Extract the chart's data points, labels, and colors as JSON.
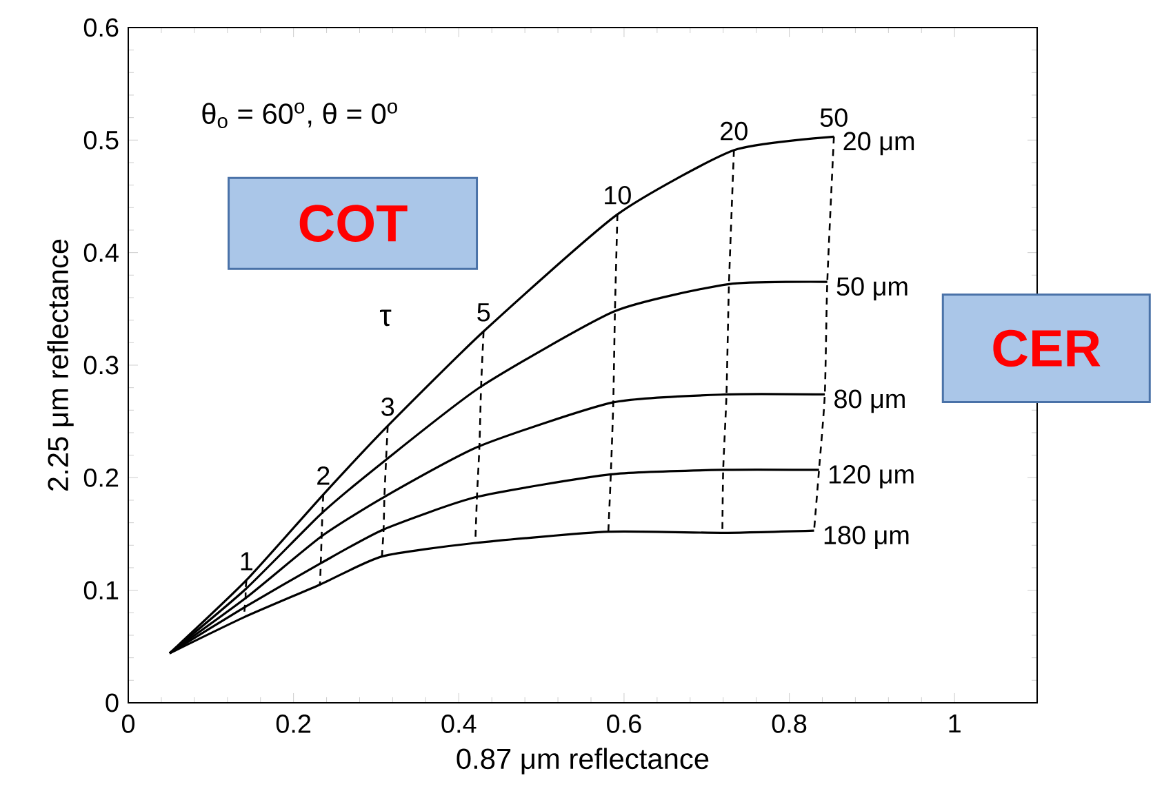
{
  "chart_data": {
    "type": "line",
    "xlabel": "0.87 μm reflectance",
    "ylabel": "2.25 μm reflectance",
    "xlim": [
      0,
      1.1
    ],
    "ylim": [
      0,
      0.6
    ],
    "xticks": [
      0,
      0.2,
      0.4,
      0.6,
      0.8,
      1
    ],
    "yticks": [
      0,
      0.1,
      0.2,
      0.3,
      0.4,
      0.5,
      0.6
    ],
    "grid": false,
    "series": [
      {
        "name": "20 μm",
        "color": "#000000",
        "line_style": "solid",
        "x": [
          0.05,
          0.143,
          0.236,
          0.314,
          0.43,
          0.592,
          0.733,
          0.854
        ],
        "values": [
          0.044,
          0.109,
          0.185,
          0.246,
          0.33,
          0.434,
          0.491,
          0.503
        ]
      },
      {
        "name": "50 μm",
        "color": "#000000",
        "line_style": "solid",
        "x": [
          0.05,
          0.142,
          0.235,
          0.312,
          0.427,
          0.589,
          0.727,
          0.846
        ],
        "values": [
          0.044,
          0.101,
          0.169,
          0.216,
          0.281,
          0.348,
          0.372,
          0.374
        ]
      },
      {
        "name": "80 μm",
        "color": "#000000",
        "line_style": "solid",
        "x": [
          0.05,
          0.142,
          0.234,
          0.31,
          0.425,
          0.587,
          0.724,
          0.843
        ],
        "values": [
          0.044,
          0.093,
          0.148,
          0.183,
          0.228,
          0.267,
          0.274,
          0.274
        ]
      },
      {
        "name": "120 μm",
        "color": "#000000",
        "line_style": "solid",
        "x": [
          0.05,
          0.141,
          0.233,
          0.309,
          0.422,
          0.584,
          0.72,
          0.836
        ],
        "values": [
          0.044,
          0.085,
          0.124,
          0.154,
          0.183,
          0.203,
          0.207,
          0.207
        ]
      },
      {
        "name": "180 μm",
        "color": "#000000",
        "line_style": "solid",
        "x": [
          0.05,
          0.14,
          0.232,
          0.307,
          0.42,
          0.581,
          0.719,
          0.83
        ],
        "values": [
          0.044,
          0.076,
          0.105,
          0.13,
          0.142,
          0.152,
          0.151,
          0.153
        ]
      },
      {
        "name": "1",
        "color": "#000000",
        "line_style": "dashed",
        "x": [
          0.143,
          0.142,
          0.142,
          0.141,
          0.14
        ],
        "values": [
          0.109,
          0.101,
          0.093,
          0.085,
          0.076
        ]
      },
      {
        "name": "2",
        "color": "#000000",
        "line_style": "dashed",
        "x": [
          0.236,
          0.235,
          0.234,
          0.233,
          0.232
        ],
        "values": [
          0.185,
          0.169,
          0.148,
          0.124,
          0.105
        ]
      },
      {
        "name": "3",
        "color": "#000000",
        "line_style": "dashed",
        "x": [
          0.314,
          0.312,
          0.31,
          0.309,
          0.307
        ],
        "values": [
          0.246,
          0.216,
          0.183,
          0.154,
          0.13
        ]
      },
      {
        "name": "5",
        "color": "#000000",
        "line_style": "dashed",
        "x": [
          0.43,
          0.427,
          0.425,
          0.422,
          0.42
        ],
        "values": [
          0.33,
          0.281,
          0.228,
          0.183,
          0.142
        ]
      },
      {
        "name": "10",
        "color": "#000000",
        "line_style": "dashed",
        "x": [
          0.592,
          0.589,
          0.587,
          0.584,
          0.581
        ],
        "values": [
          0.434,
          0.348,
          0.267,
          0.203,
          0.152
        ]
      },
      {
        "name": "20",
        "color": "#000000",
        "line_style": "dashed",
        "x": [
          0.733,
          0.727,
          0.724,
          0.72,
          0.719
        ],
        "values": [
          0.491,
          0.372,
          0.274,
          0.207,
          0.151
        ]
      },
      {
        "name": "50",
        "color": "#000000",
        "line_style": "dashed",
        "x": [
          0.854,
          0.846,
          0.843,
          0.836,
          0.83
        ],
        "values": [
          0.503,
          0.374,
          0.274,
          0.207,
          0.153
        ]
      }
    ],
    "annotations": [
      "θ$_{o}$ = 60$^{o}$, θ = 0$^{o}$",
      "τ",
      "COT",
      "CER"
    ]
  }
}
